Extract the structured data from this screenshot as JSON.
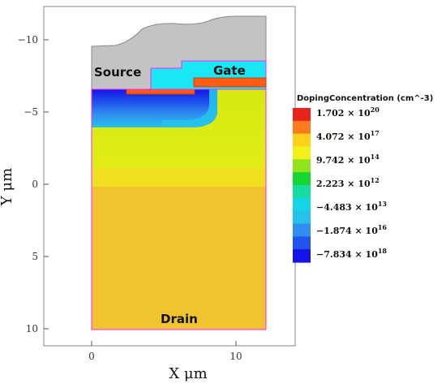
{
  "axes": {
    "x_title": "X μm",
    "y_title": "Y μm",
    "x_ticks": [
      "0",
      "10"
    ],
    "y_ticks": [
      "−10",
      "−5",
      "0",
      "5",
      "10"
    ]
  },
  "regions": {
    "source": "Source",
    "gate": "Gate",
    "drain": "Drain"
  },
  "legend": {
    "title": "DopingConcentration (cm^-3)",
    "entries": [
      {
        "mantissa": "1.702",
        "exponent": "20"
      },
      {
        "mantissa": "4.072",
        "exponent": "17"
      },
      {
        "mantissa": "9.742",
        "exponent": "14"
      },
      {
        "mantissa": "2.223",
        "exponent": "12"
      },
      {
        "mantissa": "−4.483",
        "exponent": "13"
      },
      {
        "mantissa": "−1.874",
        "exponent": "16"
      },
      {
        "mantissa": "−7.834",
        "exponent": "18"
      }
    ],
    "colors": [
      "#e8231a",
      "#ff7a1a",
      "#ffd21a",
      "#f2f21a",
      "#8fe41a",
      "#16d632",
      "#16dca0",
      "#16d6e6",
      "#26c2ec",
      "#2f8ef0",
      "#1f55ee",
      "#1414e6"
    ]
  },
  "colors": {
    "metal": "#c3c3c3",
    "oxide": "#19e8f4",
    "gate_poly": "#ff5a16",
    "drift": "#f0c42f",
    "epi": "#dcec12",
    "boundary": "#ff20ff"
  }
}
